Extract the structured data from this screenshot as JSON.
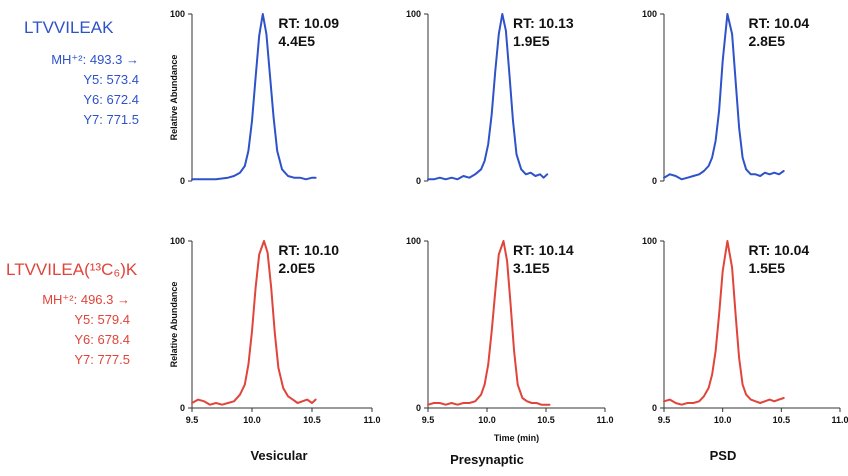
{
  "peptides": [
    {
      "title": "LTVVILEAK",
      "lines": [
        "MH⁺²: 493.3 →",
        "Y5: 573.4",
        "Y6: 672.4",
        "Y7: 771.5"
      ],
      "color": "#2e52c9"
    },
    {
      "title": "LTVVILEA(¹³C₆)K",
      "lines": [
        "MH⁺²: 496.3 →",
        "Y5: 579.4",
        "Y6: 678.4",
        "Y7: 777.5"
      ],
      "color": "#e0443a"
    }
  ],
  "columns": [
    "Vesicular",
    "Presynaptic",
    "PSD"
  ],
  "chart_data": [
    {
      "type": "line",
      "title": "",
      "xlabel": "",
      "ylabel": "Relative Abundance",
      "xlim": [
        9.5,
        11.0
      ],
      "ylim": [
        0,
        100
      ],
      "rt_label": "RT: 10.09",
      "intensity_label": "4.4E5",
      "series": [
        {
          "color": "#2e52c9",
          "x": [
            9.5,
            9.6,
            9.7,
            9.75,
            9.8,
            9.85,
            9.9,
            9.94,
            9.97,
            10.0,
            10.03,
            10.06,
            10.09,
            10.12,
            10.15,
            10.18,
            10.21,
            10.25,
            10.3,
            10.35,
            10.4,
            10.45,
            10.5,
            10.53
          ],
          "y": [
            1,
            1,
            1,
            1.5,
            2,
            3,
            5,
            9,
            18,
            36,
            62,
            87,
            100,
            88,
            63,
            38,
            18,
            7,
            3,
            2,
            2,
            1,
            2,
            2
          ]
        }
      ]
    },
    {
      "type": "line",
      "title": "",
      "xlabel": "",
      "ylabel": "",
      "xlim": [
        9.5,
        11.0
      ],
      "ylim": [
        0,
        100
      ],
      "rt_label": "RT: 10.13",
      "intensity_label": "1.9E5",
      "series": [
        {
          "color": "#2e52c9",
          "x": [
            9.5,
            9.55,
            9.6,
            9.65,
            9.7,
            9.75,
            9.8,
            9.85,
            9.9,
            9.95,
            9.98,
            10.01,
            10.04,
            10.07,
            10.1,
            10.13,
            10.16,
            10.19,
            10.22,
            10.25,
            10.29,
            10.33,
            10.37,
            10.41,
            10.45,
            10.48,
            10.51
          ],
          "y": [
            1,
            1,
            2,
            1,
            2,
            1,
            3,
            2,
            4,
            7,
            12,
            22,
            40,
            66,
            88,
            100,
            90,
            64,
            36,
            16,
            7,
            4,
            5,
            3,
            4,
            2,
            4
          ]
        }
      ]
    },
    {
      "type": "line",
      "title": "",
      "xlabel": "",
      "ylabel": "",
      "xlim": [
        9.5,
        11.0
      ],
      "ylim": [
        0,
        100
      ],
      "rt_label": "RT: 10.04",
      "intensity_label": "2.8E5",
      "series": [
        {
          "color": "#2e52c9",
          "x": [
            9.5,
            9.55,
            9.6,
            9.65,
            9.7,
            9.75,
            9.8,
            9.84,
            9.88,
            9.91,
            9.94,
            9.97,
            10.0,
            10.04,
            10.08,
            10.11,
            10.14,
            10.17,
            10.2,
            10.24,
            10.28,
            10.32,
            10.36,
            10.4,
            10.44,
            10.48,
            10.52
          ],
          "y": [
            2,
            4,
            3,
            1,
            2,
            3,
            4,
            6,
            9,
            14,
            24,
            42,
            72,
            100,
            88,
            60,
            32,
            14,
            7,
            4,
            4,
            3,
            5,
            4,
            5,
            4,
            6
          ]
        }
      ]
    },
    {
      "type": "line",
      "title": "",
      "xlabel": "",
      "ylabel": "Relative Abundance",
      "xlim": [
        9.5,
        11.0
      ],
      "ylim": [
        0,
        100
      ],
      "rt_label": "RT: 10.10",
      "intensity_label": "2.0E5",
      "series": [
        {
          "color": "#e0443a",
          "x": [
            9.5,
            9.55,
            9.6,
            9.65,
            9.7,
            9.75,
            9.8,
            9.85,
            9.9,
            9.94,
            9.97,
            10.0,
            10.03,
            10.06,
            10.1,
            10.13,
            10.16,
            10.19,
            10.22,
            10.26,
            10.3,
            10.34,
            10.38,
            10.42,
            10.46,
            10.5,
            10.53
          ],
          "y": [
            3,
            5,
            4,
            2,
            3,
            2,
            3,
            4,
            8,
            14,
            26,
            46,
            72,
            92,
            100,
            93,
            72,
            45,
            24,
            12,
            7,
            5,
            3,
            4,
            5,
            3,
            5
          ]
        }
      ]
    },
    {
      "type": "line",
      "title": "",
      "xlabel": "Time (min)",
      "ylabel": "",
      "xlim": [
        9.5,
        11.0
      ],
      "ylim": [
        0,
        100
      ],
      "rt_label": "RT: 10.14",
      "intensity_label": "3.1E5",
      "series": [
        {
          "color": "#e0443a",
          "x": [
            9.5,
            9.55,
            9.6,
            9.65,
            9.7,
            9.75,
            9.8,
            9.85,
            9.9,
            9.95,
            9.98,
            10.01,
            10.04,
            10.07,
            10.1,
            10.14,
            10.17,
            10.2,
            10.23,
            10.26,
            10.3,
            10.34,
            10.38,
            10.42,
            10.46,
            10.5,
            10.53
          ],
          "y": [
            2,
            3,
            3,
            2,
            3,
            2,
            3,
            3,
            4,
            8,
            14,
            26,
            46,
            70,
            92,
            100,
            88,
            62,
            34,
            14,
            6,
            4,
            3,
            3,
            2,
            2,
            2
          ]
        }
      ]
    },
    {
      "type": "line",
      "title": "",
      "xlabel": "",
      "ylabel": "",
      "xlim": [
        9.5,
        11.0
      ],
      "ylim": [
        0,
        100
      ],
      "rt_label": "RT: 10.04",
      "intensity_label": "1.5E5",
      "series": [
        {
          "color": "#e0443a",
          "x": [
            9.5,
            9.55,
            9.6,
            9.65,
            9.7,
            9.75,
            9.8,
            9.84,
            9.88,
            9.91,
            9.94,
            9.97,
            10.0,
            10.04,
            10.08,
            10.11,
            10.14,
            10.17,
            10.2,
            10.24,
            10.28,
            10.32,
            10.36,
            10.4,
            10.44,
            10.48,
            10.52
          ],
          "y": [
            4,
            5,
            3,
            2,
            3,
            3,
            4,
            7,
            12,
            20,
            34,
            56,
            82,
            100,
            84,
            56,
            30,
            14,
            8,
            5,
            4,
            3,
            4,
            5,
            4,
            5,
            6
          ]
        }
      ]
    }
  ]
}
